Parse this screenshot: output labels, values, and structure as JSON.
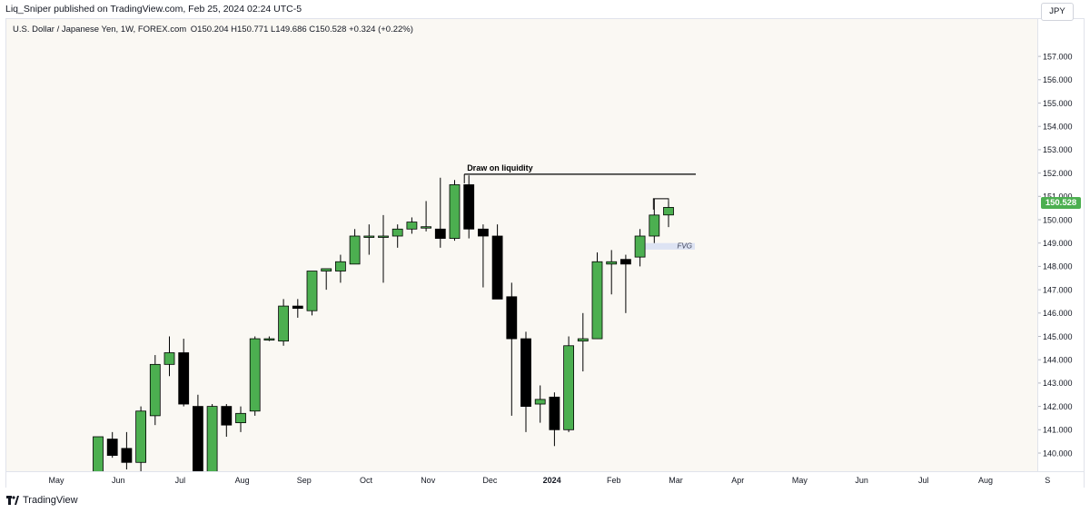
{
  "header": {
    "published": "Liq_Sniper published on TradingView.com, Feb 25, 2024 02:24 UTC-5"
  },
  "legend": {
    "symbol": "U.S. Dollar / Japanese Yen, 1W, FOREX.com",
    "ohlc": "O150.204 H150.771 L149.686 C150.528 +0.324 (+0.22%)"
  },
  "currency_button": "JPY",
  "last_price": "150.528",
  "colors": {
    "bull": "#4caf50",
    "bear": "#000000",
    "pane_bg": "#faf8f3",
    "fvg": "#dde3f3",
    "price_tag": "#4caf50"
  },
  "annotations": {
    "liquidity_label": "Draw on liquidity",
    "liquidity_level": 151.95,
    "fvg_label": "FVG",
    "fvg_range": [
      148.72,
      149.0
    ]
  },
  "time_labels": [
    {
      "label": "May",
      "bold": false
    },
    {
      "label": "Jun",
      "bold": false
    },
    {
      "label": "Jul",
      "bold": false
    },
    {
      "label": "Aug",
      "bold": false
    },
    {
      "label": "Sep",
      "bold": false
    },
    {
      "label": "Oct",
      "bold": false
    },
    {
      "label": "Nov",
      "bold": false
    },
    {
      "label": "Dec",
      "bold": false
    },
    {
      "label": "2024",
      "bold": true
    },
    {
      "label": "Feb",
      "bold": false
    },
    {
      "label": "Mar",
      "bold": false
    },
    {
      "label": "Apr",
      "bold": false
    },
    {
      "label": "May",
      "bold": false
    },
    {
      "label": "Jun",
      "bold": false
    },
    {
      "label": "Jul",
      "bold": false
    },
    {
      "label": "Aug",
      "bold": false
    },
    {
      "label": "S",
      "bold": false
    }
  ],
  "footer": {
    "brand": "TradingView"
  },
  "chart_data": {
    "type": "candlestick",
    "symbol": "USDJPY",
    "interval": "1W",
    "y_ticks": [
      "140.000",
      "141.000",
      "142.000",
      "143.000",
      "144.000",
      "145.000",
      "146.000",
      "147.000",
      "148.000",
      "149.000",
      "150.000",
      "151.000",
      "152.000",
      "153.000",
      "154.000",
      "155.000",
      "156.000",
      "157.000"
    ],
    "ylim": [
      139.0,
      157.9
    ],
    "candles": [
      {
        "week": "2023-05-15",
        "o": 137.8,
        "h": 140.7,
        "l": 137.5,
        "c": 140.7
      },
      {
        "week": "2023-05-22",
        "o": 140.6,
        "h": 140.9,
        "l": 139.8,
        "c": 139.9
      },
      {
        "week": "2023-05-29",
        "o": 140.2,
        "h": 140.9,
        "l": 139.3,
        "c": 139.6
      },
      {
        "week": "2023-06-05",
        "o": 139.6,
        "h": 142.0,
        "l": 138.8,
        "c": 141.8
      },
      {
        "week": "2023-06-12",
        "o": 141.6,
        "h": 144.2,
        "l": 141.2,
        "c": 143.8
      },
      {
        "week": "2023-06-19",
        "o": 143.8,
        "h": 145.0,
        "l": 143.3,
        "c": 144.3
      },
      {
        "week": "2023-06-26",
        "o": 144.3,
        "h": 144.9,
        "l": 142.0,
        "c": 142.1
      },
      {
        "week": "2023-07-03",
        "o": 142.0,
        "h": 142.5,
        "l": 138.1,
        "c": 138.8
      },
      {
        "week": "2023-07-10",
        "o": 138.8,
        "h": 142.1,
        "l": 138.5,
        "c": 142.0
      },
      {
        "week": "2023-07-17",
        "o": 142.0,
        "h": 142.1,
        "l": 140.7,
        "c": 141.2
      },
      {
        "week": "2023-07-24",
        "o": 141.3,
        "h": 142.0,
        "l": 140.9,
        "c": 141.7
      },
      {
        "week": "2023-07-31",
        "o": 141.8,
        "h": 145.0,
        "l": 141.6,
        "c": 144.9
      },
      {
        "week": "2023-08-07",
        "o": 144.9,
        "h": 145.0,
        "l": 144.8,
        "c": 144.9
      },
      {
        "week": "2023-08-14",
        "o": 144.8,
        "h": 146.6,
        "l": 144.6,
        "c": 146.3
      },
      {
        "week": "2023-08-21",
        "o": 146.3,
        "h": 146.6,
        "l": 145.8,
        "c": 146.2
      },
      {
        "week": "2023-08-28",
        "o": 146.1,
        "h": 147.8,
        "l": 145.9,
        "c": 147.8
      },
      {
        "week": "2023-09-04",
        "o": 147.8,
        "h": 147.9,
        "l": 147.0,
        "c": 147.9
      },
      {
        "week": "2023-09-11",
        "o": 147.8,
        "h": 148.5,
        "l": 147.3,
        "c": 148.2
      },
      {
        "week": "2023-09-18",
        "o": 148.1,
        "h": 149.6,
        "l": 148.1,
        "c": 149.3
      },
      {
        "week": "2023-09-25",
        "o": 149.3,
        "h": 149.8,
        "l": 148.5,
        "c": 149.3
      },
      {
        "week": "2023-10-02",
        "o": 149.3,
        "h": 150.2,
        "l": 147.3,
        "c": 149.3
      },
      {
        "week": "2023-10-09",
        "o": 149.3,
        "h": 149.8,
        "l": 148.8,
        "c": 149.6
      },
      {
        "week": "2023-10-16",
        "o": 149.6,
        "h": 150.1,
        "l": 149.4,
        "c": 149.9
      },
      {
        "week": "2023-10-23",
        "o": 149.7,
        "h": 150.8,
        "l": 149.5,
        "c": 149.7
      },
      {
        "week": "2023-10-30",
        "o": 149.6,
        "h": 151.8,
        "l": 148.8,
        "c": 149.2
      },
      {
        "week": "2023-11-06",
        "o": 149.2,
        "h": 151.7,
        "l": 149.1,
        "c": 151.5
      },
      {
        "week": "2023-11-13",
        "o": 151.5,
        "h": 151.9,
        "l": 149.2,
        "c": 149.6
      },
      {
        "week": "2023-11-20",
        "o": 149.6,
        "h": 149.8,
        "l": 147.1,
        "c": 149.3
      },
      {
        "week": "2023-11-27",
        "o": 149.3,
        "h": 149.8,
        "l": 146.6,
        "c": 146.6
      },
      {
        "week": "2023-12-04",
        "o": 146.7,
        "h": 147.3,
        "l": 141.6,
        "c": 144.9
      },
      {
        "week": "2023-12-11",
        "o": 144.9,
        "h": 145.2,
        "l": 140.9,
        "c": 142.0
      },
      {
        "week": "2023-12-18",
        "o": 142.1,
        "h": 142.9,
        "l": 141.3,
        "c": 142.3
      },
      {
        "week": "2023-12-25",
        "o": 142.4,
        "h": 142.6,
        "l": 140.3,
        "c": 141.0
      },
      {
        "week": "2024-01-01",
        "o": 141.0,
        "h": 145.0,
        "l": 140.9,
        "c": 144.6
      },
      {
        "week": "2024-01-08",
        "o": 144.8,
        "h": 146.0,
        "l": 143.5,
        "c": 144.9
      },
      {
        "week": "2024-01-15",
        "o": 144.9,
        "h": 148.6,
        "l": 144.9,
        "c": 148.2
      },
      {
        "week": "2024-01-22",
        "o": 148.1,
        "h": 148.7,
        "l": 146.8,
        "c": 148.2
      },
      {
        "week": "2024-01-29",
        "o": 148.3,
        "h": 148.5,
        "l": 146.0,
        "c": 148.1
      },
      {
        "week": "2024-02-05",
        "o": 148.4,
        "h": 149.6,
        "l": 148.0,
        "c": 149.3
      },
      {
        "week": "2024-02-12",
        "o": 149.3,
        "h": 150.9,
        "l": 149.0,
        "c": 150.2
      },
      {
        "week": "2024-02-19",
        "o": 150.204,
        "h": 150.771,
        "l": 149.686,
        "c": 150.528
      }
    ]
  }
}
